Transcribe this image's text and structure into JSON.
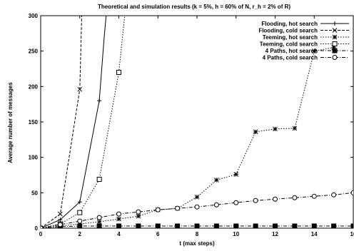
{
  "chart_data": {
    "type": "line",
    "title": "Theoretical and simulation results (k = 5%, h = 60% of N, r_h = 2% of R)",
    "xlabel": "t (max steps)",
    "ylabel": "Average number of messages",
    "xlim": [
      0,
      16
    ],
    "ylim": [
      0,
      300
    ],
    "xticks": [
      "0",
      "2",
      "4",
      "6",
      "8",
      "10",
      "12",
      "14",
      "16"
    ],
    "yticks": [
      "0",
      "50",
      "100",
      "150",
      "200",
      "250",
      "300"
    ],
    "grid": false,
    "legend_position": "top-right",
    "series": [
      {
        "name": "Flooding, hot search",
        "marker": "plus",
        "dash": "solid",
        "x": [
          0,
          1,
          2,
          3,
          3.25,
          3.35
        ],
        "y": [
          0,
          12,
          37,
          180,
          270,
          300
        ]
      },
      {
        "name": "Flooding, cold search",
        "marker": "cross",
        "dash": "dashed",
        "x": [
          0,
          1,
          2,
          2.1
        ],
        "y": [
          0,
          20,
          196,
          300
        ]
      },
      {
        "name": "Teeming, hot search",
        "marker": "star",
        "dash": "dotted",
        "x": [
          0,
          1,
          2,
          3,
          4,
          5,
          6,
          7,
          8,
          9,
          10,
          11,
          12,
          13,
          14,
          15
        ],
        "y": [
          0,
          3,
          6,
          9,
          13,
          17,
          26,
          28,
          44,
          68,
          76,
          136,
          140,
          141,
          250,
          255
        ]
      },
      {
        "name": "Teeming, cold search",
        "marker": "square",
        "dash": "dotted",
        "x": [
          0,
          1,
          2,
          3,
          4,
          4.3
        ],
        "y": [
          0,
          6,
          22,
          69,
          220,
          300
        ]
      },
      {
        "name": "4 Paths, hot search",
        "marker": "filled-square",
        "dash": "dashdot",
        "x": [
          0,
          1,
          2,
          3,
          4,
          5,
          6,
          7,
          8,
          9,
          10,
          11,
          12,
          13,
          14,
          15,
          16
        ],
        "y": [
          0,
          2,
          3,
          3,
          3,
          3,
          3,
          3,
          3,
          3,
          3,
          3,
          3,
          3,
          3,
          3,
          3
        ]
      },
      {
        "name": "4 Paths, cold search",
        "marker": "circle",
        "dash": "dashdot",
        "x": [
          0,
          1,
          2,
          3,
          4,
          5,
          6,
          7,
          8,
          9,
          10,
          11,
          12,
          13,
          14,
          15,
          16
        ],
        "y": [
          0,
          5,
          10,
          15,
          20,
          23,
          26,
          28,
          30,
          33,
          36,
          39,
          41,
          43,
          45,
          47,
          50
        ]
      }
    ]
  }
}
